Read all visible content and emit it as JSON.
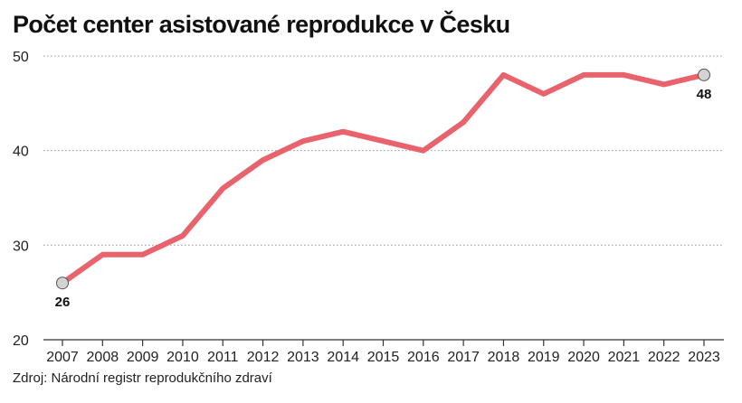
{
  "title": "Počet center asistované reprodukce v Česku",
  "source": "Zdroj: Národní registr reprodukčního zdraví",
  "colors": {
    "line": "#e8636c",
    "grid": "#9a9a9a",
    "axis": "#333333",
    "marker_fill": "#d3d3d3",
    "marker_stroke": "#555555"
  },
  "chart_data": {
    "type": "line",
    "x": [
      2007,
      2008,
      2009,
      2010,
      2011,
      2012,
      2013,
      2014,
      2015,
      2016,
      2017,
      2018,
      2019,
      2020,
      2021,
      2022,
      2023
    ],
    "series": [
      {
        "values": [
          26,
          29,
          29,
          31,
          36,
          39,
          41,
          42,
          41,
          40,
          43,
          48,
          46,
          48,
          48,
          47,
          48
        ]
      }
    ],
    "ylim": [
      20,
      50
    ],
    "yticks": [
      20,
      30,
      40,
      50
    ],
    "grid": true,
    "grid_style": "dotted-horizontal",
    "annotations": [
      {
        "x": 2007,
        "y": 26,
        "label": "26",
        "position": "below"
      },
      {
        "x": 2023,
        "y": 48,
        "label": "48",
        "position": "below"
      }
    ]
  }
}
